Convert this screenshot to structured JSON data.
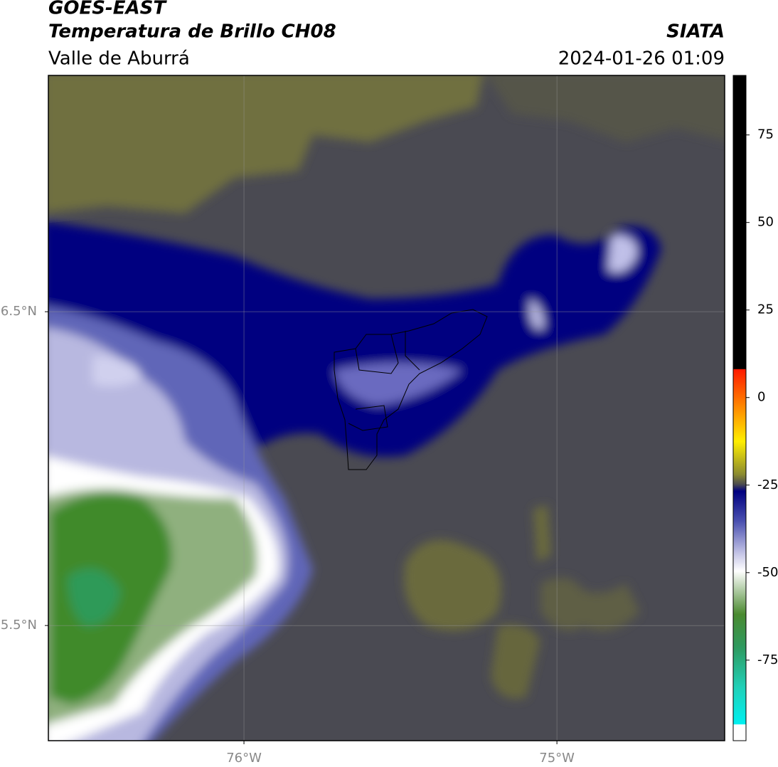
{
  "header": {
    "title": "GOES-EAST",
    "subtitle": "Temperatura de Brillo CH08",
    "region": "Valle de Aburrá",
    "source": "SIATA",
    "timestamp": "2024-01-26 01:09"
  },
  "map": {
    "latlim": [
      5.133,
      7.253
    ],
    "lonlim": [
      -76.625,
      -74.464
    ],
    "lat_ticks": [
      {
        "value": 5.5,
        "label": "5.5°N"
      },
      {
        "value": 6.5,
        "label": "6.5°N"
      }
    ],
    "lon_ticks": [
      {
        "value": -76,
        "label": "76°W"
      },
      {
        "value": -75,
        "label": "75°W"
      }
    ],
    "grid": true
  },
  "colorbar": {
    "range": [
      -98,
      92
    ],
    "ticks": [
      75,
      50,
      25,
      0,
      -25,
      -50,
      -75
    ]
  }
}
